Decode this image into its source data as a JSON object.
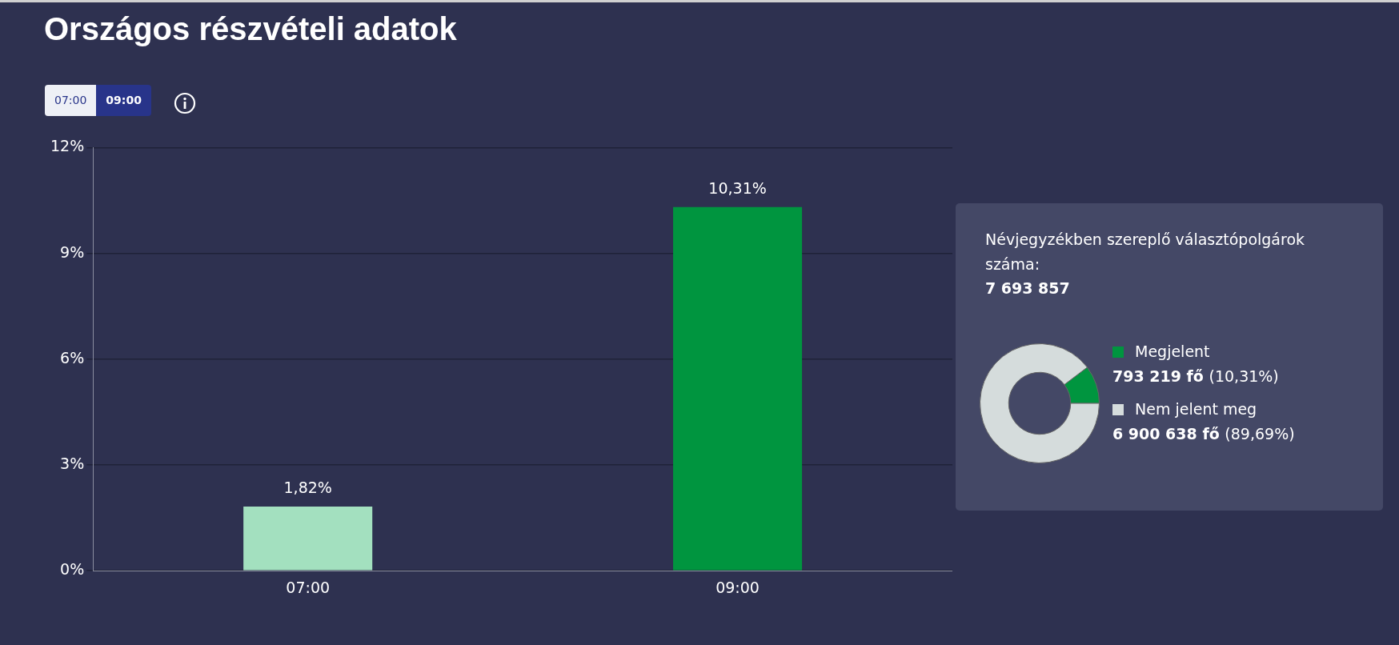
{
  "chart_data": [
    {
      "type": "bar",
      "title": "Országos részvételi adatok",
      "categories": [
        "07:00",
        "09:00"
      ],
      "values": [
        1.82,
        10.31
      ],
      "colors": [
        "#a3e0bf",
        "#00953f"
      ],
      "value_labels": [
        "1,82%",
        "10,31%"
      ],
      "ylim": [
        0,
        12
      ],
      "yticks": [
        {
          "value": 0,
          "label": "0%"
        },
        {
          "value": 3,
          "label": "3%"
        },
        {
          "value": 6,
          "label": "6%"
        },
        {
          "value": 9,
          "label": "9%"
        },
        {
          "value": 12,
          "label": "12%"
        }
      ],
      "grid": "y",
      "legend": false
    },
    {
      "type": "donut",
      "title": "Névjegyzékben szereplő választópolgárok száma:",
      "subtitle": "7 693 857",
      "categories": [
        "Megjelent",
        "Nem jelent meg"
      ],
      "values": [
        793219,
        6900638
      ],
      "colors": [
        "#00953f",
        "#d5dcdc"
      ],
      "value_labels": [
        "793 219 fő (10,31%)",
        "6 900 638 fő (89,69%)"
      ],
      "legend": "right"
    }
  ]
}
